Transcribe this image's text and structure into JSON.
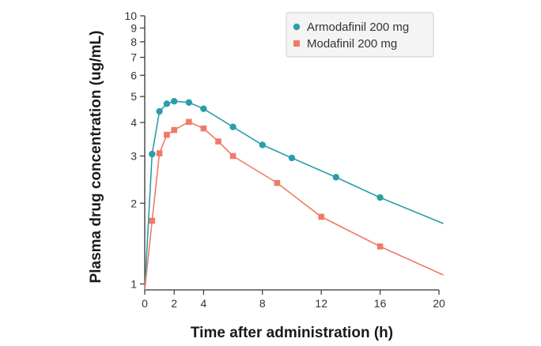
{
  "chart_data": {
    "type": "line",
    "title": "",
    "xlabel": "Time after administration (h)",
    "ylabel": "Plasma drug concentration (ug/mL)",
    "xlim": [
      0,
      20
    ],
    "ylim": [
      0.95,
      10
    ],
    "yscale": "log",
    "grid": false,
    "legend_position": "top-right",
    "x_ticks": [
      "0",
      "2",
      "4",
      "8",
      "12",
      "16",
      "20"
    ],
    "x_tick_values": [
      0,
      2,
      4,
      8,
      12,
      16,
      20
    ],
    "y_ticks": [
      "1",
      "2",
      "3",
      "4",
      "5",
      "6",
      "7",
      "8",
      "9",
      "10"
    ],
    "y_tick_values": [
      1,
      2,
      3,
      4,
      5,
      6,
      7,
      8,
      9,
      10
    ],
    "series": [
      {
        "name": "Armodafinil 200 mg",
        "color": "#2a9ea8",
        "marker": "circle",
        "points": {
          "x": [
            0.5,
            1,
            1.5,
            2,
            3,
            4,
            6,
            8,
            10,
            13,
            16
          ],
          "y": [
            3.05,
            4.4,
            4.7,
            4.8,
            4.75,
            4.5,
            3.85,
            3.3,
            2.95,
            2.5,
            2.1
          ]
        },
        "curve": {
          "x": [
            0,
            0.5,
            1,
            1.5,
            2,
            3,
            4,
            6,
            8,
            10,
            13,
            16,
            20.3
          ],
          "y": [
            0.95,
            3.05,
            4.4,
            4.7,
            4.8,
            4.75,
            4.5,
            3.85,
            3.3,
            2.95,
            2.5,
            2.1,
            1.68
          ]
        }
      },
      {
        "name": "Modafinil 200 mg",
        "color": "#ef7b66",
        "marker": "square",
        "points": {
          "x": [
            0.5,
            1,
            1.5,
            2,
            3,
            4,
            5,
            6,
            9,
            12,
            16
          ],
          "y": [
            1.72,
            3.07,
            3.6,
            3.75,
            4.02,
            3.8,
            3.4,
            3.0,
            2.38,
            1.78,
            1.38
          ]
        },
        "curve": {
          "x": [
            0,
            0.5,
            1,
            1.5,
            2,
            3,
            4,
            5,
            6,
            9,
            12,
            16,
            20.3
          ],
          "y": [
            0.95,
            1.72,
            3.07,
            3.6,
            3.75,
            4.02,
            3.8,
            3.4,
            3.0,
            2.38,
            1.78,
            1.38,
            1.08
          ]
        }
      }
    ]
  },
  "colors": {
    "axis": "#333333",
    "legend_border": "#cccccc",
    "legend_bg": "#f4f4f4"
  }
}
